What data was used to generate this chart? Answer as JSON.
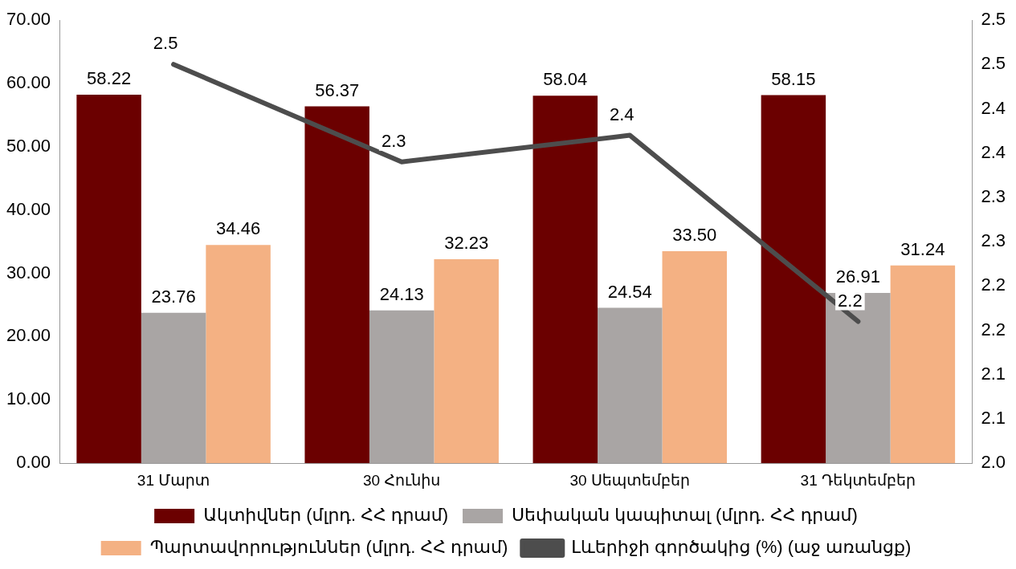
{
  "chart_data": {
    "type": "bar",
    "categories": [
      "31 Մարտ",
      "30 Հունիս",
      "30 Սեպտեմբեր",
      "31 Դեկտեմբեր"
    ],
    "series": [
      {
        "name": "Ակտիվներ (մլրդ. ՀՀ դրամ)",
        "color": "#6b0000",
        "values": [
          58.22,
          56.37,
          58.04,
          58.15
        ]
      },
      {
        "name": "Սեփական կապիտալ (մլրդ. ՀՀ դրամ)",
        "color": "#a9a5a4",
        "values": [
          23.76,
          24.13,
          24.54,
          26.91
        ]
      },
      {
        "name": "Պարտավորություններ (մլրդ. ՀՀ դրամ)",
        "color": "#f4b183",
        "values": [
          34.46,
          32.23,
          33.5,
          31.24
        ],
        "value_labels": [
          "34.46",
          "32.23",
          "33.50",
          "31.24"
        ]
      },
      {
        "name": "Լևերիջի գործակից (%) (աջ առանցք)",
        "color": "#4d4d4d",
        "type": "line",
        "axis": "y2",
        "values": [
          2.45,
          2.34,
          2.37,
          2.16
        ],
        "value_labels": [
          "2.5",
          "2.3",
          "2.4",
          "2.2"
        ]
      }
    ],
    "data_labels": true,
    "ylim": [
      0,
      70
    ],
    "yticks": [
      {
        "value": 0,
        "label": "0.00"
      },
      {
        "value": 10,
        "label": "10.00"
      },
      {
        "value": 20,
        "label": "20.00"
      },
      {
        "value": 30,
        "label": "30.00"
      },
      {
        "value": 40,
        "label": "40.00"
      },
      {
        "value": 50,
        "label": "50.00"
      },
      {
        "value": 60,
        "label": "60.00"
      },
      {
        "value": 70,
        "label": "70.00"
      }
    ],
    "y2lim": [
      2.0,
      2.5
    ],
    "y2ticks": [
      {
        "value": 2.0,
        "label": "2.0"
      },
      {
        "value": 2.05,
        "label": "2.1"
      },
      {
        "value": 2.1,
        "label": "2.1"
      },
      {
        "value": 2.15,
        "label": "2.2"
      },
      {
        "value": 2.2,
        "label": "2.2"
      },
      {
        "value": 2.25,
        "label": "2.3"
      },
      {
        "value": 2.3,
        "label": "2.3"
      },
      {
        "value": 2.35,
        "label": "2.4"
      },
      {
        "value": 2.4,
        "label": "2.4"
      },
      {
        "value": 2.45,
        "label": "2.5"
      },
      {
        "value": 2.5,
        "label": "2.5"
      }
    ],
    "grid": false,
    "legend": "bottom",
    "marker": "none",
    "line_style": "solid"
  }
}
